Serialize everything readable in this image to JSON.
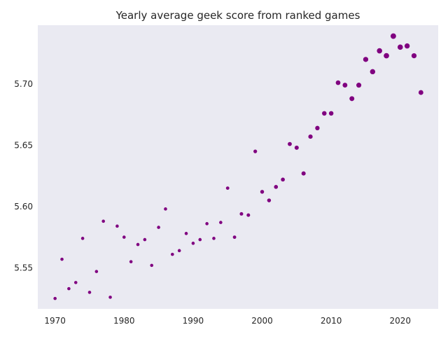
{
  "chart_data": {
    "type": "scatter",
    "title": "Yearly average geek score from ranked games",
    "xlabel": "",
    "ylabel": "",
    "xlim": [
      1967.5,
      2025.5
    ],
    "ylim": [
      5.5165,
      5.7479
    ],
    "xticks": [
      1970,
      1980,
      1990,
      2000,
      2010,
      2020
    ],
    "yticks": [
      5.55,
      5.6,
      5.65,
      5.7
    ],
    "ytick_labels": [
      "5.55",
      "5.60",
      "5.65",
      "5.70"
    ],
    "grid": false,
    "legend": "none",
    "colors": {
      "background": "#eaeaf2",
      "marker": "#800080"
    },
    "marker_size_encodes": "number of ranked games per year (relative, not labeled)",
    "points": [
      {
        "x": 1970,
        "y": 5.525,
        "s": 1
      },
      {
        "x": 1971,
        "y": 5.557,
        "s": 1
      },
      {
        "x": 1972,
        "y": 5.533,
        "s": 1
      },
      {
        "x": 1973,
        "y": 5.538,
        "s": 1
      },
      {
        "x": 1974,
        "y": 5.574,
        "s": 1
      },
      {
        "x": 1975,
        "y": 5.53,
        "s": 1
      },
      {
        "x": 1976,
        "y": 5.547,
        "s": 1
      },
      {
        "x": 1977,
        "y": 5.588,
        "s": 1
      },
      {
        "x": 1978,
        "y": 5.526,
        "s": 1
      },
      {
        "x": 1979,
        "y": 5.584,
        "s": 1
      },
      {
        "x": 1980,
        "y": 5.575,
        "s": 1
      },
      {
        "x": 1981,
        "y": 5.555,
        "s": 1
      },
      {
        "x": 1982,
        "y": 5.569,
        "s": 1
      },
      {
        "x": 1983,
        "y": 5.573,
        "s": 1
      },
      {
        "x": 1984,
        "y": 5.552,
        "s": 1
      },
      {
        "x": 1985,
        "y": 5.583,
        "s": 1
      },
      {
        "x": 1986,
        "y": 5.598,
        "s": 1
      },
      {
        "x": 1987,
        "y": 5.561,
        "s": 1
      },
      {
        "x": 1988,
        "y": 5.564,
        "s": 1
      },
      {
        "x": 1989,
        "y": 5.578,
        "s": 1
      },
      {
        "x": 1990,
        "y": 5.57,
        "s": 1
      },
      {
        "x": 1991,
        "y": 5.573,
        "s": 1
      },
      {
        "x": 1992,
        "y": 5.586,
        "s": 1
      },
      {
        "x": 1993,
        "y": 5.574,
        "s": 1
      },
      {
        "x": 1994,
        "y": 5.587,
        "s": 1
      },
      {
        "x": 1995,
        "y": 5.615,
        "s": 1.1
      },
      {
        "x": 1996,
        "y": 5.575,
        "s": 1.1
      },
      {
        "x": 1997,
        "y": 5.594,
        "s": 1.2
      },
      {
        "x": 1998,
        "y": 5.593,
        "s": 1.2
      },
      {
        "x": 1999,
        "y": 5.645,
        "s": 1.3
      },
      {
        "x": 2000,
        "y": 5.612,
        "s": 1.4
      },
      {
        "x": 2001,
        "y": 5.605,
        "s": 1.4
      },
      {
        "x": 2002,
        "y": 5.616,
        "s": 1.5
      },
      {
        "x": 2003,
        "y": 5.622,
        "s": 1.5
      },
      {
        "x": 2004,
        "y": 5.651,
        "s": 1.6
      },
      {
        "x": 2005,
        "y": 5.648,
        "s": 1.7
      },
      {
        "x": 2006,
        "y": 5.627,
        "s": 1.7
      },
      {
        "x": 2007,
        "y": 5.657,
        "s": 1.8
      },
      {
        "x": 2008,
        "y": 5.664,
        "s": 1.9
      },
      {
        "x": 2009,
        "y": 5.676,
        "s": 2
      },
      {
        "x": 2010,
        "y": 5.676,
        "s": 2
      },
      {
        "x": 2011,
        "y": 5.701,
        "s": 2.1
      },
      {
        "x": 2012,
        "y": 5.699,
        "s": 2.2
      },
      {
        "x": 2013,
        "y": 5.688,
        "s": 2.3
      },
      {
        "x": 2014,
        "y": 5.699,
        "s": 2.4
      },
      {
        "x": 2015,
        "y": 5.72,
        "s": 2.5
      },
      {
        "x": 2016,
        "y": 5.71,
        "s": 2.6
      },
      {
        "x": 2017,
        "y": 5.727,
        "s": 2.7
      },
      {
        "x": 2018,
        "y": 5.723,
        "s": 2.8
      },
      {
        "x": 2019,
        "y": 5.739,
        "s": 2.9
      },
      {
        "x": 2020,
        "y": 5.73,
        "s": 2.7
      },
      {
        "x": 2021,
        "y": 5.731,
        "s": 2.6
      },
      {
        "x": 2022,
        "y": 5.723,
        "s": 2.5
      },
      {
        "x": 2023,
        "y": 5.693,
        "s": 2.2
      }
    ]
  }
}
